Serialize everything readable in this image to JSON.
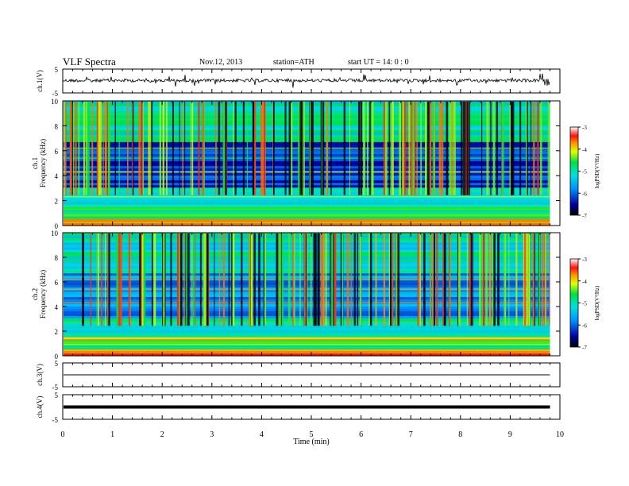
{
  "header": {
    "title": "VLF Spectra",
    "date": "Nov.12, 2013",
    "station": "station=ATH",
    "start": "start UT =  14: 0 : 0"
  },
  "chart_data": [
    {
      "id": "ch1",
      "type": "line",
      "ylabel": "ch.1(V)",
      "ylim": [
        -5,
        5
      ],
      "yticks": [
        "5",
        "-5"
      ],
      "description_level": 0.2
    },
    {
      "id": "ch1-spec",
      "type": "heatmap",
      "ylabel": "ch.1\nFrequency  (kHz)",
      "ylabel_line1": "ch.1",
      "ylabel_line2": "Frequency  (kHz)",
      "ylim": [
        0,
        10
      ],
      "yticks": [
        "0",
        "2",
        "4",
        "6",
        "8",
        "10"
      ],
      "colorbar": {
        "label": "logPSD(V²/Hz)",
        "range": [
          -7,
          -3
        ],
        "ticks": [
          "-3",
          "-4",
          "-5",
          "-6",
          "-7"
        ]
      }
    },
    {
      "id": "ch2-spec",
      "type": "heatmap",
      "ylabel_line1": "ch.2",
      "ylabel_line2": "Frequency  (kHz)",
      "ylim": [
        0,
        10
      ],
      "yticks": [
        "0",
        "2",
        "4",
        "6",
        "8",
        "10"
      ],
      "colorbar": {
        "label": "logPSD(V²/Hz)",
        "range": [
          -7,
          -3
        ],
        "ticks": [
          "-3",
          "-4",
          "-5",
          "-6",
          "-7"
        ]
      }
    },
    {
      "id": "ch3",
      "type": "line",
      "ylabel": "ch.3(V)",
      "ylim": [
        -5,
        5
      ],
      "yticks": [
        "5",
        "-5"
      ],
      "level": 0
    },
    {
      "id": "ch4",
      "type": "line",
      "ylabel": "ch.4(V)",
      "ylim": [
        -5,
        5
      ],
      "yticks": [
        "5",
        "-5"
      ],
      "level": 0
    }
  ],
  "xaxis": {
    "label": "Time  (min)",
    "xlim": [
      0,
      10
    ],
    "ticks": [
      "0",
      "1",
      "2",
      "3",
      "4",
      "5",
      "6",
      "7",
      "8",
      "9",
      "10"
    ],
    "data_end": 9.8
  },
  "colors": {
    "low": "#000060",
    "mid": "#00c8ff",
    "high": "#ff2020"
  }
}
